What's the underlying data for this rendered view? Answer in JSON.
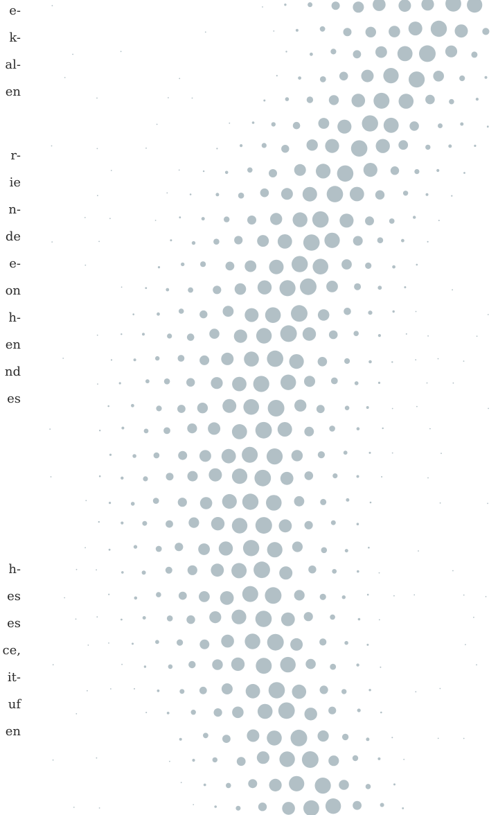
{
  "text_fragments": {
    "paragraph_1": [
      "e-",
      "k-",
      "al-",
      "en"
    ],
    "paragraph_2": [
      "r-",
      "ie",
      "n-",
      "de",
      "e-",
      "on",
      "h-",
      "en",
      "nd",
      "es"
    ],
    "paragraph_3": [
      "h-",
      "es",
      "es",
      "ce,",
      "it-",
      "uf",
      "en"
    ]
  },
  "colors": {
    "background": "#ffffff",
    "text": "#2a2a2a",
    "dot": "#b2c0c6"
  },
  "decoration": {
    "type": "halftone-dot-pattern",
    "description": "curved band of grey halftone dots"
  }
}
